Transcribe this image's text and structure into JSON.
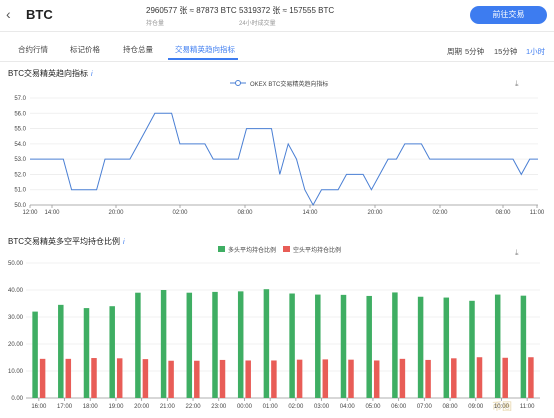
{
  "header": {
    "symbol": "BTC",
    "stat1_value": "2960577 张 ≈ 87873 BTC",
    "stat1_label": "持仓量",
    "stat2_value": "5319372 张 ≈ 157555 BTC",
    "stat2_label": "24小时成交量",
    "trade_button": "前往交易"
  },
  "tabs": [
    "合约行情",
    "标记价格",
    "持仓总量",
    "交易精英趋向指标"
  ],
  "period": {
    "label": "周期",
    "options": [
      "5分钟",
      "15分钟",
      "1小时"
    ],
    "active_index": 2
  },
  "chart1_section_title": "BTC交易精英趋向指标",
  "chart2_section_title": "BTC交易精英多空平均持仓比例",
  "watermark": "币圈",
  "chart_data": [
    {
      "type": "line",
      "series": [
        {
          "name": "OKEX BTC交易精英趋向指标",
          "color": "#4a7fd4",
          "values": [
            53,
            53,
            53,
            53,
            53,
            51,
            51,
            51,
            51,
            53,
            53,
            53,
            53,
            54,
            55,
            56,
            56,
            56,
            54,
            54,
            54,
            54,
            53,
            53,
            53,
            53,
            55,
            55,
            55,
            55,
            52,
            54,
            53,
            51,
            50,
            51,
            51,
            51,
            52,
            52,
            52,
            51,
            52,
            53,
            53,
            54,
            54,
            54,
            53,
            53,
            53,
            53,
            53,
            53,
            53,
            53,
            53,
            53,
            53,
            52,
            53,
            53
          ]
        }
      ],
      "x_ticks": [
        "12:00",
        "14:00",
        "20:00",
        "02:00",
        "08:00",
        "14:00",
        "20:00",
        "02:00",
        "08:00",
        "11:00"
      ],
      "ylim": [
        50,
        57
      ],
      "y_ticks": [
        "50.0",
        "51.0",
        "52.0",
        "53.0",
        "54.0",
        "55.0",
        "56.0",
        "57.0"
      ],
      "legend_position": "top"
    },
    {
      "type": "bar",
      "categories": [
        "16:00",
        "17:00",
        "18:00",
        "19:00",
        "20:00",
        "21:00",
        "22:00",
        "23:00",
        "00:00",
        "01:00",
        "02:00",
        "03:00",
        "04:00",
        "05:00",
        "06:00",
        "07:00",
        "08:00",
        "09:00",
        "10:00",
        "11:00"
      ],
      "series": [
        {
          "name": "多头平均持仓比例",
          "color": "#3fae63",
          "values": [
            32,
            34.5,
            33.3,
            34,
            39,
            40,
            39,
            39.3,
            39.5,
            40.3,
            38.7,
            38.3,
            38.2,
            37.8,
            39.1,
            37.5,
            37.2,
            36,
            38.3,
            37.9
          ]
        },
        {
          "name": "空头平均持仓比例",
          "color": "#e85d57",
          "values": [
            14.5,
            14.5,
            14.8,
            14.7,
            14.4,
            13.8,
            13.8,
            14.1,
            13.9,
            13.9,
            14.2,
            14.3,
            14.2,
            13.9,
            14.5,
            14.1,
            14.7,
            15.1,
            14.9,
            15.1
          ]
        }
      ],
      "ylim": [
        0,
        50
      ],
      "y_ticks": [
        "0.00",
        "10.00",
        "20.00",
        "30.00",
        "40.00",
        "50.00"
      ],
      "legend_position": "top"
    }
  ]
}
